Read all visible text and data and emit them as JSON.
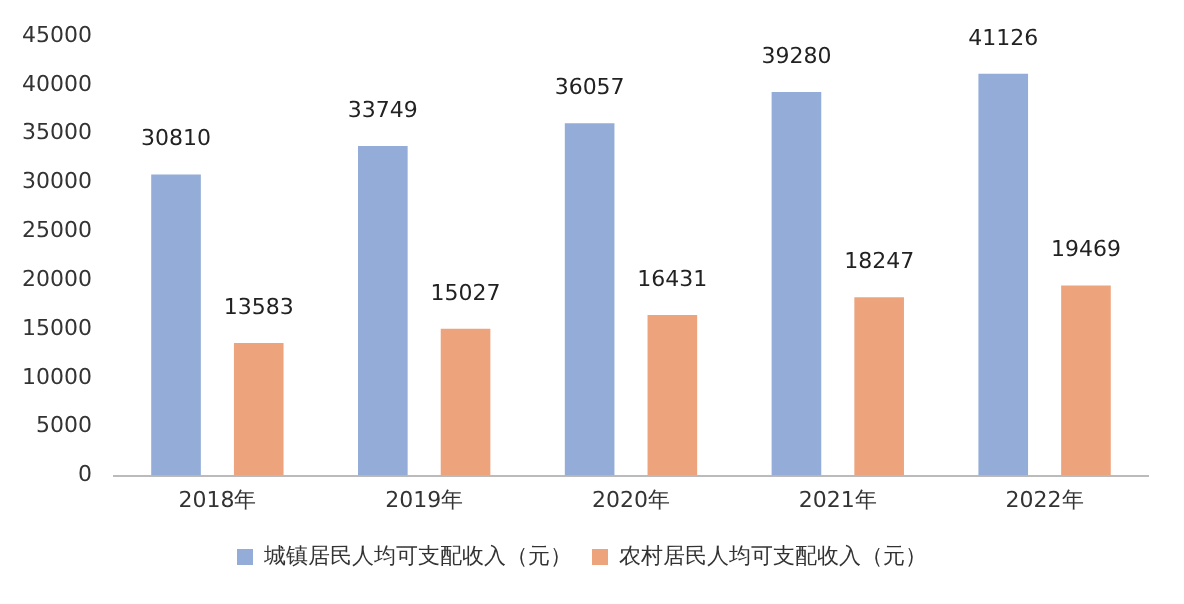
{
  "chart_data": {
    "type": "bar",
    "categories": [
      "2018年",
      "2019年",
      "2020年",
      "2021年",
      "2022年"
    ],
    "series": [
      {
        "name": "城镇居民人均可支配收入（元）",
        "color": "#93acd8",
        "values": [
          30810,
          33749,
          36057,
          39280,
          41126
        ]
      },
      {
        "name": "农村居民人均可支配收入（元）",
        "color": "#eda47c",
        "values": [
          13583,
          15027,
          16431,
          18247,
          19469
        ]
      }
    ],
    "ylim": [
      0,
      45000
    ],
    "yticks": [
      0,
      5000,
      10000,
      15000,
      20000,
      25000,
      30000,
      35000,
      40000,
      45000
    ],
    "grid": false,
    "legend": "bottom",
    "data_labels": true
  }
}
